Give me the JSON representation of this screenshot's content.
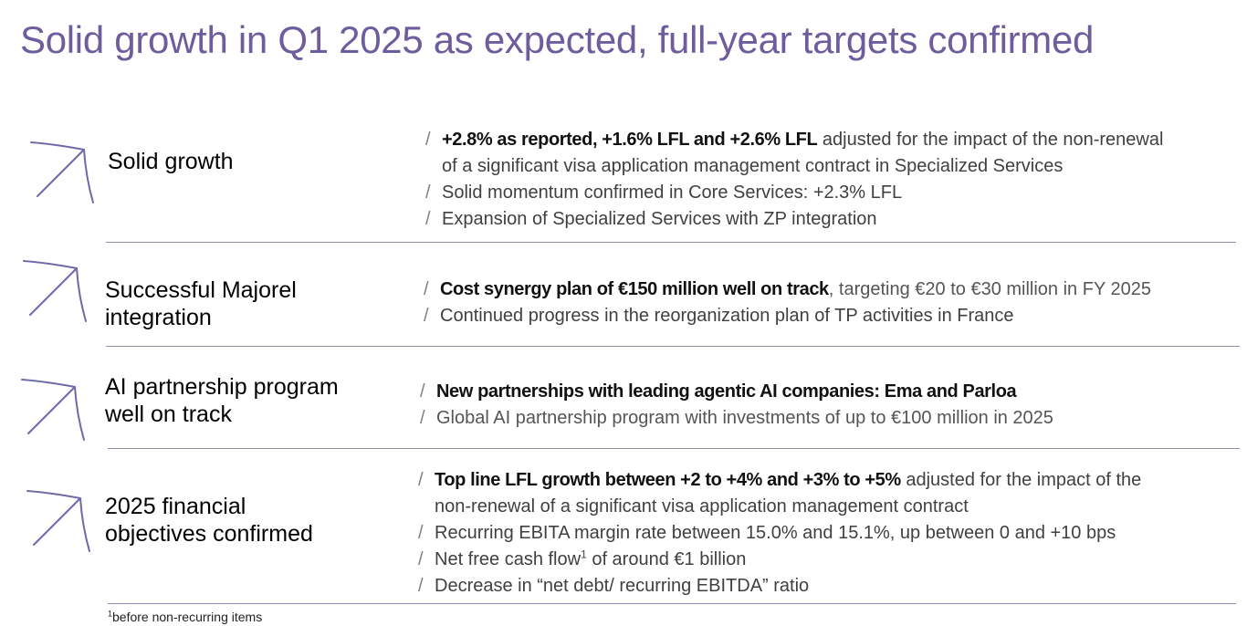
{
  "title": "Solid growth in Q1 2025 as expected, full-year targets confirmed",
  "icons": {
    "arrow": "arrow-up-right-icon"
  },
  "colors": {
    "title": "#6e5d9c",
    "divider": "#8f8cae",
    "arrow": "#6e6aa8"
  },
  "sections": [
    {
      "heading": "Solid growth",
      "bullets": [
        {
          "bold": "+2.8% as reported, +1.6% LFL and +2.6% LFL",
          "text": " adjusted for the impact of the non-renewal",
          "cont": "of a significant visa application management contract in Specialized Services"
        },
        {
          "text": "Solid momentum confirmed in Core Services: +2.3% LFL"
        },
        {
          "text": "Expansion of Specialized Services with ZP integration"
        }
      ]
    },
    {
      "heading_line1": "Successful Majorel",
      "heading_line2": "integration",
      "bullets": [
        {
          "bold": "Cost synergy plan of €150 million well on track",
          "text": ", targeting €20 to €30 million in FY 2025"
        },
        {
          "text": "Continued progress in the reorganization plan of TP activities in France"
        }
      ]
    },
    {
      "heading_line1": "AI partnership program",
      "heading_line2": "well on track",
      "bullets": [
        {
          "bold": "New partnerships with leading agentic AI companies: Ema and Parloa"
        },
        {
          "text": "Global AI partnership program with investments of up to €100 million in 2025"
        }
      ]
    },
    {
      "heading_line1": "2025 financial",
      "heading_line2": "objectives confirmed",
      "bullets": [
        {
          "bold": "Top line LFL growth between +2 to +4% and +3% to +5%",
          "text": " adjusted for the impact of the",
          "cont": "non-renewal of a significant visa application management contract"
        },
        {
          "text": "Recurring EBITA margin rate between 15.0% and 15.1%, up between 0 and +10 bps"
        },
        {
          "text": "Net free cash flow",
          "sup": "1",
          "text2": " of around €1 billion"
        },
        {
          "text": "Decrease in “net debt/ recurring EBITDA” ratio"
        }
      ]
    }
  ],
  "footnote": {
    "sup": "1",
    "text": "before non-recurring items"
  }
}
